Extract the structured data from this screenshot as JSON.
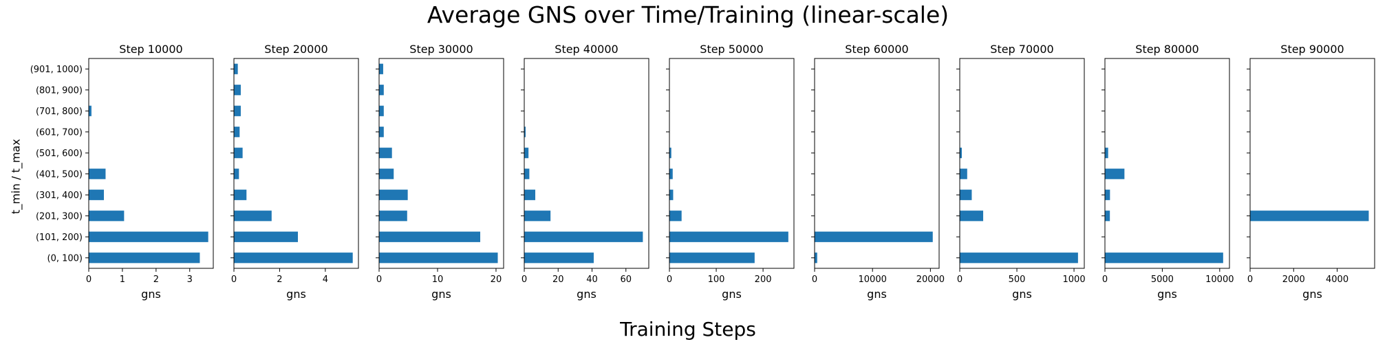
{
  "figure": {
    "title": "Average GNS over Time/Training (linear-scale)",
    "xlabel": "Training Steps",
    "ylabel": "t_min / t_max"
  },
  "colors": {
    "bar": "#1f77b4",
    "axis": "#000000"
  },
  "chart_data": [
    {
      "type": "bar",
      "orientation": "horizontal",
      "title": "Step 10000",
      "xlabel": "gns",
      "categories": [
        "(0, 100)",
        "(101, 200)",
        "(201, 300)",
        "(301, 400)",
        "(401, 500)",
        "(501, 600)",
        "(601, 700)",
        "(701, 800)",
        "(801, 900)",
        "(901, 1000)"
      ],
      "values": [
        3.3,
        3.55,
        1.05,
        0.45,
        0.5,
        0,
        0,
        0.08,
        0,
        0
      ],
      "xlim": [
        0,
        3.7
      ],
      "xticks": [
        0,
        1,
        2,
        3
      ],
      "xtick_labels": [
        "0",
        "1",
        "2",
        "3"
      ]
    },
    {
      "type": "bar",
      "orientation": "horizontal",
      "title": "Step 20000",
      "xlabel": "gns",
      "categories": [
        "(0, 100)",
        "(101, 200)",
        "(201, 300)",
        "(301, 400)",
        "(401, 500)",
        "(501, 600)",
        "(601, 700)",
        "(701, 800)",
        "(801, 900)",
        "(901, 1000)"
      ],
      "values": [
        5.2,
        2.8,
        1.65,
        0.55,
        0.22,
        0.38,
        0.25,
        0.3,
        0.3,
        0.17
      ],
      "xlim": [
        0,
        5.45
      ],
      "xticks": [
        0,
        2,
        4
      ],
      "xtick_labels": [
        "0",
        "2",
        "4"
      ]
    },
    {
      "type": "bar",
      "orientation": "horizontal",
      "title": "Step 30000",
      "xlabel": "gns",
      "categories": [
        "(0, 100)",
        "(101, 200)",
        "(201, 300)",
        "(301, 400)",
        "(401, 500)",
        "(501, 600)",
        "(601, 700)",
        "(701, 800)",
        "(801, 900)",
        "(901, 1000)"
      ],
      "values": [
        20.3,
        17.3,
        4.8,
        4.9,
        2.5,
        2.2,
        0.8,
        0.8,
        0.8,
        0.7
      ],
      "xlim": [
        0,
        21.3
      ],
      "xticks": [
        0,
        10,
        20
      ],
      "xtick_labels": [
        "0",
        "10",
        "20"
      ]
    },
    {
      "type": "bar",
      "orientation": "horizontal",
      "title": "Step 40000",
      "xlabel": "gns",
      "categories": [
        "(0, 100)",
        "(101, 200)",
        "(201, 300)",
        "(301, 400)",
        "(401, 500)",
        "(501, 600)",
        "(601, 700)",
        "(701, 800)",
        "(801, 900)",
        "(901, 1000)"
      ],
      "values": [
        41,
        70,
        15.5,
        6.5,
        3,
        2.5,
        0.8,
        0,
        0,
        0
      ],
      "xlim": [
        0,
        73.5
      ],
      "xticks": [
        0,
        20,
        40,
        60
      ],
      "xtick_labels": [
        "0",
        "20",
        "40",
        "60"
      ]
    },
    {
      "type": "bar",
      "orientation": "horizontal",
      "title": "Step 50000",
      "xlabel": "gns",
      "categories": [
        "(0, 100)",
        "(101, 200)",
        "(201, 300)",
        "(301, 400)",
        "(401, 500)",
        "(501, 600)",
        "(601, 700)",
        "(701, 800)",
        "(801, 900)",
        "(901, 1000)"
      ],
      "values": [
        182,
        254,
        26,
        8,
        7,
        4,
        0,
        0,
        0,
        0
      ],
      "xlim": [
        0,
        266
      ],
      "xticks": [
        0,
        100,
        200
      ],
      "xtick_labels": [
        "0",
        "100",
        "200"
      ]
    },
    {
      "type": "bar",
      "orientation": "horizontal",
      "title": "Step 60000",
      "xlabel": "gns",
      "categories": [
        "(0, 100)",
        "(101, 200)",
        "(201, 300)",
        "(301, 400)",
        "(401, 500)",
        "(501, 600)",
        "(601, 700)",
        "(701, 800)",
        "(801, 900)",
        "(901, 1000)"
      ],
      "values": [
        450,
        20400,
        0,
        0,
        0,
        0,
        0,
        0,
        0,
        0
      ],
      "xlim": [
        0,
        21500
      ],
      "xticks": [
        0,
        10000,
        20000
      ],
      "xtick_labels": [
        "0",
        "10000",
        "20000"
      ]
    },
    {
      "type": "bar",
      "orientation": "horizontal",
      "title": "Step 70000",
      "xlabel": "gns",
      "categories": [
        "(0, 100)",
        "(101, 200)",
        "(201, 300)",
        "(301, 400)",
        "(401, 500)",
        "(501, 600)",
        "(601, 700)",
        "(701, 800)",
        "(801, 900)",
        "(901, 1000)"
      ],
      "values": [
        1035,
        0,
        205,
        105,
        65,
        18,
        0,
        0,
        0,
        0
      ],
      "xlim": [
        0,
        1090
      ],
      "xticks": [
        0,
        500,
        1000
      ],
      "xtick_labels": [
        "0",
        "500",
        "1000"
      ]
    },
    {
      "type": "bar",
      "orientation": "horizontal",
      "title": "Step 80000",
      "xlabel": "gns",
      "categories": [
        "(0, 100)",
        "(101, 200)",
        "(201, 300)",
        "(301, 400)",
        "(401, 500)",
        "(501, 600)",
        "(601, 700)",
        "(701, 800)",
        "(801, 900)",
        "(901, 1000)"
      ],
      "values": [
        10300,
        0,
        430,
        440,
        1700,
        280,
        0,
        0,
        0,
        0
      ],
      "xlim": [
        0,
        10850
      ],
      "xticks": [
        0,
        5000,
        10000
      ],
      "xtick_labels": [
        "0",
        "5000",
        "10000"
      ]
    },
    {
      "type": "bar",
      "orientation": "horizontal",
      "title": "Step 90000",
      "xlabel": "gns",
      "categories": [
        "(0, 100)",
        "(101, 200)",
        "(201, 300)",
        "(301, 400)",
        "(401, 500)",
        "(501, 600)",
        "(601, 700)",
        "(701, 800)",
        "(801, 900)",
        "(901, 1000)"
      ],
      "values": [
        0,
        0,
        5450,
        0,
        0,
        0,
        0,
        0,
        0,
        0
      ],
      "xlim": [
        0,
        5720
      ],
      "xticks": [
        0,
        2000,
        4000
      ],
      "xtick_labels": [
        "0",
        "2000",
        "4000"
      ]
    }
  ]
}
